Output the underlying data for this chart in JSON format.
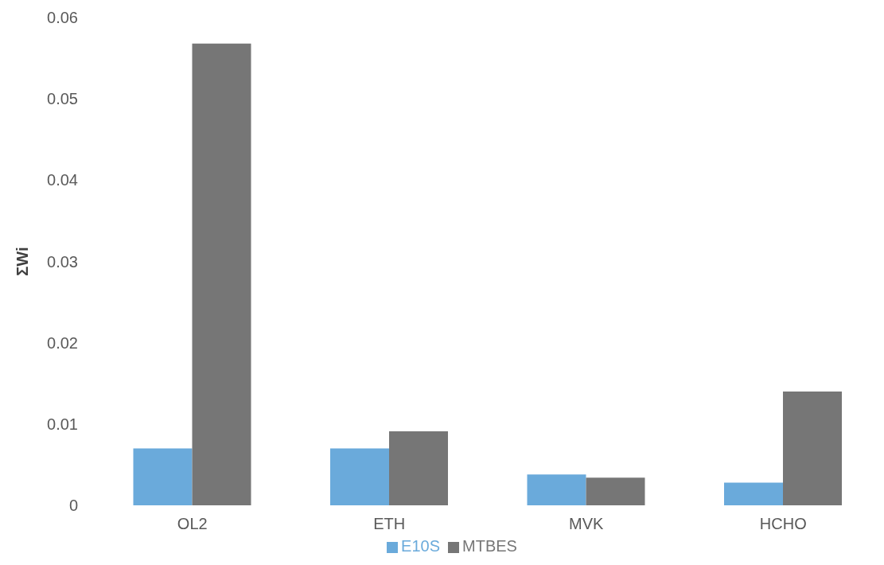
{
  "chart_data": {
    "type": "bar",
    "ylabel": "ΣWi",
    "categories": [
      "OL2",
      "ETH",
      "MVK",
      "HCHO"
    ],
    "series": [
      {
        "name": "E10S",
        "color": "#6aaadb",
        "values": [
          0.007,
          0.007,
          0.0038,
          0.0028
        ]
      },
      {
        "name": "MTBES",
        "color": "#767676",
        "values": [
          0.0568,
          0.0091,
          0.0034,
          0.014
        ]
      }
    ],
    "ylim": [
      0,
      0.06
    ],
    "yticks": [
      0,
      0.01,
      0.02,
      0.03,
      0.04,
      0.05,
      0.06
    ],
    "grid": false,
    "legend": "bottom"
  }
}
